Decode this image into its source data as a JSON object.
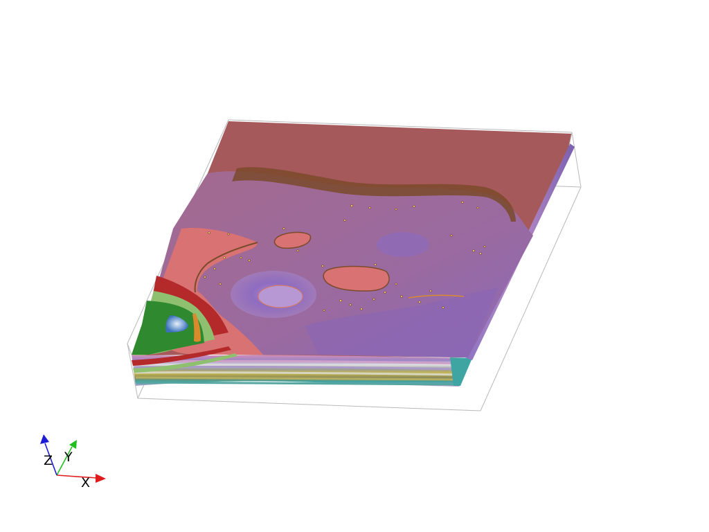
{
  "colors": {
    "background": "#ffffff",
    "bounding_box": "#b8b8b8",
    "top_surface": "#a6595a",
    "purple_body": "#9a6a9a",
    "violet_zone": "#8a66b4",
    "salmon": "#d97272",
    "red_band": "#b42a2a",
    "green_band": "#2f8a2f",
    "light_green": "#8ec06f",
    "blue_core": "#7fa6d6",
    "orange_band": "#d98a2d",
    "brown_contour": "#7a4a2c",
    "yellow_layer": "#c8b84a",
    "teal_layer": "#3fa5a3",
    "x_axis": "#e01b1b",
    "y_axis": "#1fbf1f",
    "z_axis": "#1c1cd6"
  },
  "axes": {
    "x_label": "X",
    "y_label": "Y",
    "z_label": "Z"
  }
}
